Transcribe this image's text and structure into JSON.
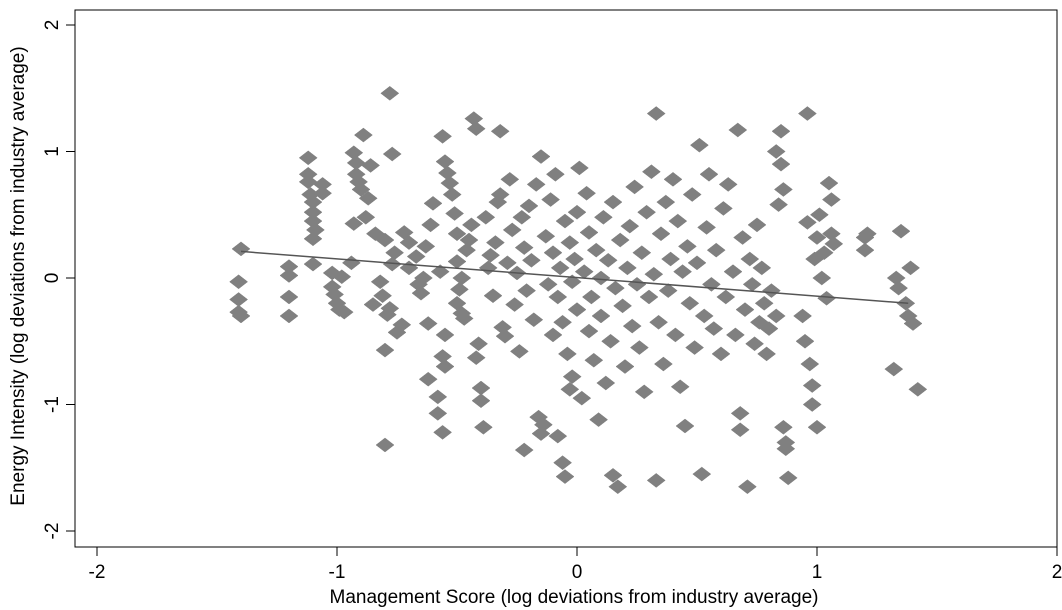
{
  "chart_data": {
    "type": "scatter",
    "xlabel": "Management Score (log deviations from industry average)",
    "ylabel": "Energy Intensity (log deviations from industry average)",
    "xlim": [
      -2,
      2
    ],
    "ylim": [
      -2,
      2
    ],
    "xticks": [
      -2,
      -1,
      0,
      1,
      2
    ],
    "yticks": [
      -2,
      -1,
      0,
      1,
      2
    ],
    "xtick_labels": [
      "-2",
      "-1",
      "0",
      "1",
      "2"
    ],
    "ytick_labels": [
      "-2",
      "-1",
      "0",
      "1",
      "2"
    ],
    "grid": false,
    "legend": "none",
    "marker": "diamond",
    "marker_color": "#808080",
    "fit_line_color": "#555555",
    "fit_line": {
      "x": [
        -1.4,
        1.38
      ],
      "y": [
        0.21,
        -0.2
      ]
    },
    "points": [
      [
        -1.4,
        0.23
      ],
      [
        -1.41,
        -0.03
      ],
      [
        -1.41,
        -0.17
      ],
      [
        -1.41,
        -0.27
      ],
      [
        -1.4,
        -0.3
      ],
      [
        -1.2,
        0.09
      ],
      [
        -1.2,
        0.02
      ],
      [
        -1.2,
        -0.15
      ],
      [
        -1.2,
        -0.3
      ],
      [
        -1.12,
        0.95
      ],
      [
        -1.12,
        0.82
      ],
      [
        -1.12,
        0.76
      ],
      [
        -1.11,
        0.66
      ],
      [
        -1.1,
        0.6
      ],
      [
        -1.1,
        0.52
      ],
      [
        -1.1,
        0.45
      ],
      [
        -1.09,
        0.38
      ],
      [
        -1.1,
        0.31
      ],
      [
        -1.1,
        0.11
      ],
      [
        -1.06,
        0.67
      ],
      [
        -1.06,
        0.74
      ],
      [
        -1.02,
        0.04
      ],
      [
        -1.02,
        -0.07
      ],
      [
        -1.01,
        -0.13
      ],
      [
        -1.0,
        -0.2
      ],
      [
        -0.99,
        -0.25
      ],
      [
        -0.98,
        0.01
      ],
      [
        -0.97,
        -0.27
      ],
      [
        -0.94,
        0.12
      ],
      [
        -0.93,
        0.43
      ],
      [
        -0.93,
        0.99
      ],
      [
        -0.92,
        0.91
      ],
      [
        -0.92,
        0.82
      ],
      [
        -0.91,
        0.76
      ],
      [
        -0.9,
        0.7
      ],
      [
        -0.89,
        1.13
      ],
      [
        -0.88,
        0.48
      ],
      [
        -0.87,
        0.63
      ],
      [
        -0.86,
        0.89
      ],
      [
        -0.85,
        -0.21
      ],
      [
        -0.84,
        0.35
      ],
      [
        -0.8,
        0.3
      ],
      [
        -0.8,
        -0.57
      ],
      [
        -0.78,
        1.46
      ],
      [
        -0.77,
        0.98
      ],
      [
        -0.8,
        -1.32
      ],
      [
        -0.82,
        -0.03
      ],
      [
        -0.81,
        -0.14
      ],
      [
        -0.79,
        -0.29
      ],
      [
        -0.78,
        -0.24
      ],
      [
        -0.77,
        0.11
      ],
      [
        -0.76,
        0.2
      ],
      [
        -0.75,
        -0.43
      ],
      [
        -0.73,
        -0.37
      ],
      [
        -0.72,
        0.36
      ],
      [
        -0.7,
        0.28
      ],
      [
        -0.7,
        0.08
      ],
      [
        -0.67,
        0.17
      ],
      [
        -0.66,
        -0.05
      ],
      [
        -0.65,
        -0.12
      ],
      [
        -0.64,
        0.0
      ],
      [
        -0.63,
        0.25
      ],
      [
        -0.62,
        -0.36
      ],
      [
        -0.61,
        0.42
      ],
      [
        -0.6,
        0.59
      ],
      [
        -0.62,
        -0.8
      ],
      [
        -0.58,
        -1.07
      ],
      [
        -0.56,
        -1.22
      ],
      [
        -0.58,
        -0.94
      ],
      [
        -0.55,
        -0.7
      ],
      [
        -0.56,
        -0.62
      ],
      [
        -0.55,
        -0.45
      ],
      [
        -0.57,
        0.05
      ],
      [
        -0.56,
        1.12
      ],
      [
        -0.55,
        0.92
      ],
      [
        -0.54,
        0.83
      ],
      [
        -0.53,
        0.75
      ],
      [
        -0.52,
        0.66
      ],
      [
        -0.51,
        0.51
      ],
      [
        -0.5,
        0.35
      ],
      [
        -0.5,
        0.13
      ],
      [
        -0.5,
        -0.2
      ],
      [
        -0.49,
        -0.09
      ],
      [
        -0.48,
        0.0
      ],
      [
        -0.48,
        -0.28
      ],
      [
        -0.47,
        -0.32
      ],
      [
        -0.46,
        0.22
      ],
      [
        -0.45,
        0.3
      ],
      [
        -0.44,
        0.42
      ],
      [
        -0.43,
        1.26
      ],
      [
        -0.42,
        1.18
      ],
      [
        -0.42,
        -0.63
      ],
      [
        -0.41,
        -0.52
      ],
      [
        -0.4,
        -0.87
      ],
      [
        -0.4,
        -0.97
      ],
      [
        -0.39,
        -1.18
      ],
      [
        -0.38,
        0.48
      ],
      [
        -0.37,
        0.08
      ],
      [
        -0.36,
        0.18
      ],
      [
        -0.35,
        -0.14
      ],
      [
        -0.34,
        0.28
      ],
      [
        -0.33,
        0.6
      ],
      [
        -0.32,
        0.66
      ],
      [
        -0.32,
        1.16
      ],
      [
        -0.31,
        -0.39
      ],
      [
        -0.3,
        -0.46
      ],
      [
        -0.29,
        0.12
      ],
      [
        -0.28,
        0.78
      ],
      [
        -0.27,
        0.38
      ],
      [
        -0.26,
        -0.21
      ],
      [
        -0.25,
        0.04
      ],
      [
        -0.24,
        -0.58
      ],
      [
        -0.23,
        0.48
      ],
      [
        -0.22,
        0.24
      ],
      [
        -0.22,
        -1.36
      ],
      [
        -0.21,
        -0.1
      ],
      [
        -0.2,
        0.57
      ],
      [
        -0.19,
        0.14
      ],
      [
        -0.18,
        -0.33
      ],
      [
        -0.17,
        0.74
      ],
      [
        -0.16,
        -1.1
      ],
      [
        -0.15,
        -1.23
      ],
      [
        -0.15,
        0.96
      ],
      [
        -0.14,
        -1.16
      ],
      [
        -0.13,
        0.33
      ],
      [
        -0.12,
        -0.05
      ],
      [
        -0.11,
        0.62
      ],
      [
        -0.1,
        -0.45
      ],
      [
        -0.1,
        0.2
      ],
      [
        -0.09,
        0.82
      ],
      [
        -0.08,
        -1.25
      ],
      [
        -0.08,
        -0.15
      ],
      [
        -0.07,
        0.08
      ],
      [
        -0.06,
        -1.46
      ],
      [
        -0.06,
        -0.35
      ],
      [
        -0.05,
        0.45
      ],
      [
        -0.05,
        -1.57
      ],
      [
        -0.04,
        -0.6
      ],
      [
        -0.03,
        0.28
      ],
      [
        -0.03,
        -0.88
      ],
      [
        -0.02,
        -0.03
      ],
      [
        -0.02,
        -0.78
      ],
      [
        -0.01,
        0.15
      ],
      [
        0.0,
        0.52
      ],
      [
        0.0,
        -0.25
      ],
      [
        0.01,
        0.87
      ],
      [
        0.02,
        -0.95
      ],
      [
        0.03,
        0.05
      ],
      [
        0.04,
        0.67
      ],
      [
        0.05,
        -0.42
      ],
      [
        0.05,
        0.36
      ],
      [
        0.06,
        -0.15
      ],
      [
        0.07,
        -0.65
      ],
      [
        0.08,
        0.22
      ],
      [
        0.09,
        -1.12
      ],
      [
        0.1,
        0.0
      ],
      [
        0.1,
        -0.3
      ],
      [
        0.11,
        0.48
      ],
      [
        0.12,
        -0.83
      ],
      [
        0.13,
        0.14
      ],
      [
        0.14,
        -0.5
      ],
      [
        0.15,
        0.6
      ],
      [
        0.15,
        -1.56
      ],
      [
        0.16,
        -0.08
      ],
      [
        0.17,
        -1.65
      ],
      [
        0.18,
        0.3
      ],
      [
        0.19,
        -0.22
      ],
      [
        0.2,
        -0.7
      ],
      [
        0.21,
        0.08
      ],
      [
        0.22,
        0.41
      ],
      [
        0.23,
        -0.38
      ],
      [
        0.24,
        0.72
      ],
      [
        0.25,
        -0.05
      ],
      [
        0.26,
        -0.55
      ],
      [
        0.27,
        0.2
      ],
      [
        0.28,
        -0.9
      ],
      [
        0.29,
        0.52
      ],
      [
        0.3,
        -0.15
      ],
      [
        0.31,
        0.84
      ],
      [
        0.32,
        0.03
      ],
      [
        0.33,
        -1.6
      ],
      [
        0.33,
        1.3
      ],
      [
        0.34,
        -0.35
      ],
      [
        0.35,
        0.35
      ],
      [
        0.36,
        -0.68
      ],
      [
        0.37,
        0.6
      ],
      [
        0.38,
        -0.1
      ],
      [
        0.39,
        0.15
      ],
      [
        0.4,
        0.78
      ],
      [
        0.41,
        -0.45
      ],
      [
        0.42,
        0.45
      ],
      [
        0.43,
        -0.86
      ],
      [
        0.44,
        0.05
      ],
      [
        0.45,
        -1.17
      ],
      [
        0.46,
        0.25
      ],
      [
        0.47,
        -0.2
      ],
      [
        0.48,
        0.66
      ],
      [
        0.49,
        -0.55
      ],
      [
        0.5,
        0.12
      ],
      [
        0.51,
        1.05
      ],
      [
        0.52,
        -1.55
      ],
      [
        0.53,
        -0.3
      ],
      [
        0.54,
        0.4
      ],
      [
        0.55,
        0.82
      ],
      [
        0.56,
        -0.05
      ],
      [
        0.57,
        -0.4
      ],
      [
        0.58,
        0.22
      ],
      [
        0.6,
        -0.6
      ],
      [
        0.61,
        0.55
      ],
      [
        0.62,
        -0.15
      ],
      [
        0.63,
        0.74
      ],
      [
        0.65,
        0.05
      ],
      [
        0.66,
        -0.45
      ],
      [
        0.67,
        1.17
      ],
      [
        0.68,
        -1.07
      ],
      [
        0.68,
        -1.2
      ],
      [
        0.69,
        0.32
      ],
      [
        0.7,
        -0.25
      ],
      [
        0.71,
        -1.65
      ],
      [
        0.72,
        0.15
      ],
      [
        0.73,
        -0.05
      ],
      [
        0.74,
        -0.52
      ],
      [
        0.75,
        0.42
      ],
      [
        0.76,
        -0.35
      ],
      [
        0.77,
        0.08
      ],
      [
        0.78,
        -0.2
      ],
      [
        0.79,
        -0.6
      ],
      [
        0.8,
        -0.4
      ],
      [
        0.81,
        -0.1
      ],
      [
        0.83,
        -0.3
      ],
      [
        0.83,
        1.0
      ],
      [
        0.84,
        0.58
      ],
      [
        0.85,
        0.9
      ],
      [
        0.85,
        1.16
      ],
      [
        0.86,
        0.7
      ],
      [
        0.86,
        -1.18
      ],
      [
        0.87,
        -1.3
      ],
      [
        0.87,
        -1.35
      ],
      [
        0.88,
        -1.58
      ],
      [
        0.94,
        -0.3
      ],
      [
        0.95,
        -0.5
      ],
      [
        0.96,
        0.44
      ],
      [
        0.96,
        1.3
      ],
      [
        0.97,
        -0.68
      ],
      [
        0.98,
        -0.85
      ],
      [
        0.98,
        -1.0
      ],
      [
        0.99,
        0.15
      ],
      [
        1.0,
        -1.18
      ],
      [
        1.0,
        0.32
      ],
      [
        1.01,
        0.5
      ],
      [
        1.02,
        0.0
      ],
      [
        1.03,
        0.2
      ],
      [
        1.04,
        -0.16
      ],
      [
        1.05,
        0.75
      ],
      [
        1.06,
        0.62
      ],
      [
        1.06,
        0.35
      ],
      [
        1.07,
        0.27
      ],
      [
        1.2,
        0.32
      ],
      [
        1.2,
        0.22
      ],
      [
        1.21,
        0.35
      ],
      [
        1.32,
        -0.72
      ],
      [
        1.33,
        0.0
      ],
      [
        1.34,
        -0.08
      ],
      [
        1.35,
        0.37
      ],
      [
        1.37,
        -0.2
      ],
      [
        1.38,
        -0.3
      ],
      [
        1.39,
        0.08
      ],
      [
        1.4,
        -0.36
      ],
      [
        1.42,
        -0.88
      ]
    ]
  }
}
